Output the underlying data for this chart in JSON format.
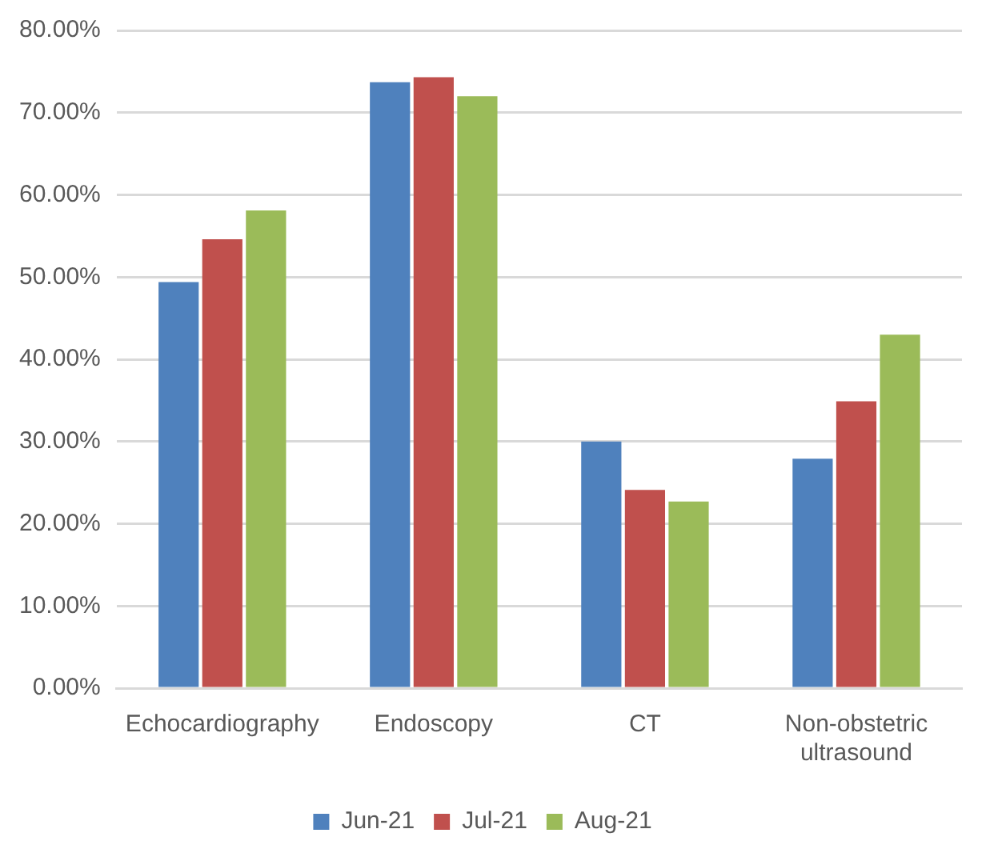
{
  "chart_data": {
    "type": "bar",
    "categories": [
      "Echocardiography",
      "Endoscopy",
      "CT",
      "Non-obstetric ultrasound"
    ],
    "series": [
      {
        "name": "Jun-21",
        "color": "#4f81bd",
        "values": [
          49.4,
          73.7,
          30.0,
          27.9
        ]
      },
      {
        "name": "Jul-21",
        "color": "#c0504d",
        "values": [
          54.6,
          74.3,
          24.1,
          34.9
        ]
      },
      {
        "name": "Aug-21",
        "color": "#9bbb59",
        "values": [
          58.1,
          72.0,
          22.7,
          43.0
        ]
      }
    ],
    "ylim": [
      0,
      80
    ],
    "yticks": [
      {
        "value": 0,
        "label": "0.00%"
      },
      {
        "value": 10,
        "label": "10.00%"
      },
      {
        "value": 20,
        "label": "20.00%"
      },
      {
        "value": 30,
        "label": "30.00%"
      },
      {
        "value": 40,
        "label": "40.00%"
      },
      {
        "value": 50,
        "label": "50.00%"
      },
      {
        "value": 60,
        "label": "60.00%"
      },
      {
        "value": 70,
        "label": "70.00%"
      },
      {
        "value": 80,
        "label": "80.00%"
      }
    ],
    "grid": "y",
    "legend": "bottom"
  }
}
